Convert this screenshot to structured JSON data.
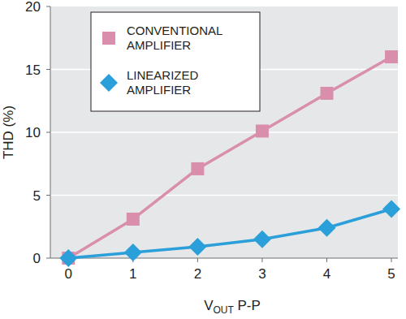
{
  "chart_data": {
    "type": "line",
    "x_label": "VOUT P-P",
    "y_label": "THD (%)",
    "x": [
      0,
      1,
      2,
      3,
      4,
      5
    ],
    "series": [
      {
        "name": "CONVENTIONAL AMPLIFIER",
        "color": "#d98fac",
        "marker": "square",
        "values": [
          0,
          3.1,
          7.1,
          10.1,
          13.1,
          16
        ]
      },
      {
        "name": "LINEARIZED AMPLIFIER",
        "color": "#2a9fd9",
        "marker": "diamond",
        "values": [
          0,
          0.45,
          0.9,
          1.5,
          2.4,
          3.9
        ]
      }
    ],
    "xlim": [
      -0.28,
      5.1
    ],
    "xticks": [
      0,
      1,
      2,
      3,
      4,
      5
    ],
    "ylim": [
      0,
      20
    ],
    "yticks": [
      0,
      5,
      10,
      15,
      20
    ],
    "grid": true,
    "legend": "upper left"
  }
}
